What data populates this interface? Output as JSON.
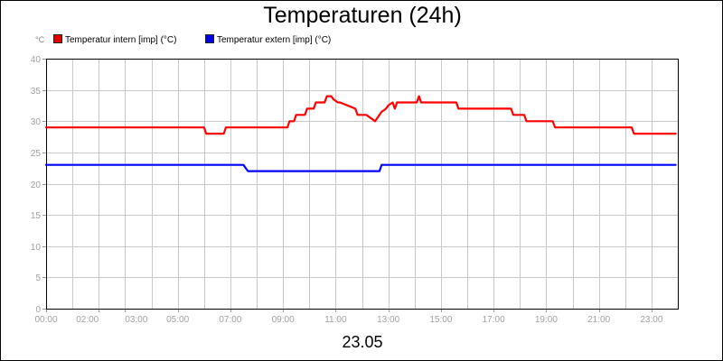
{
  "chart_data": {
    "type": "line",
    "title": "Temperaturen (24h)",
    "unit": "°C",
    "date_label": "23.05",
    "ylim": [
      0,
      40
    ],
    "y_ticks": [
      0,
      5,
      10,
      15,
      20,
      25,
      30,
      35,
      40
    ],
    "xlim": [
      "00:00",
      "24:00"
    ],
    "x_tick_labels": [
      {
        "t": "00:00",
        "h": 0
      },
      {
        "t": "02:00",
        "h": 2
      },
      {
        "t": "03:00",
        "h": 3
      },
      {
        "t": "05:00",
        "h": 5
      },
      {
        "t": "07:00",
        "h": 7
      },
      {
        "t": "09:00",
        "h": 9
      },
      {
        "t": "11:00",
        "h": 11
      },
      {
        "t": "13:00",
        "h": 13
      },
      {
        "t": "15:00",
        "h": 15
      },
      {
        "t": "17:00",
        "h": 17
      },
      {
        "t": "19:00",
        "h": 19
      },
      {
        "t": "21:00",
        "h": 21
      },
      {
        "t": "23:00",
        "h": 23
      }
    ],
    "grid": true,
    "legend_position": "top-left",
    "series": [
      {
        "name": "Temperatur intern [imp] (°C)",
        "color": "#ff0000",
        "x": [
          "00:00",
          "06:00",
          "06:05",
          "06:45",
          "06:50",
          "09:10",
          "09:15",
          "09:25",
          "09:30",
          "09:50",
          "09:55",
          "10:10",
          "10:15",
          "10:35",
          "10:40",
          "10:50",
          "10:55",
          "11:05",
          "11:10",
          "11:45",
          "11:50",
          "12:10",
          "12:20",
          "12:30",
          "12:35",
          "12:40",
          "12:45",
          "12:55",
          "13:00",
          "13:10",
          "13:15",
          "13:20",
          "13:25",
          "14:05",
          "14:10",
          "14:15",
          "14:20",
          "15:35",
          "15:40",
          "17:40",
          "17:45",
          "18:10",
          "18:15",
          "19:15",
          "19:20",
          "22:15",
          "22:20",
          "23:55"
        ],
        "y": [
          29,
          29,
          28,
          28,
          29,
          29,
          30,
          30,
          31,
          31,
          32,
          32,
          33,
          33,
          34,
          34,
          33.5,
          33,
          33,
          32,
          31,
          31,
          30.5,
          30,
          30.5,
          31,
          31.5,
          32,
          32.5,
          33,
          32,
          33,
          33,
          33,
          34,
          33,
          33,
          33,
          32,
          32,
          31,
          31,
          30,
          30,
          29,
          29,
          28,
          28
        ]
      },
      {
        "name": "Temperatur extern [imp] (°C)",
        "color": "#0000ff",
        "x": [
          "00:00",
          "07:30",
          "07:40",
          "12:40",
          "12:45",
          "23:55"
        ],
        "y": [
          23,
          23,
          22,
          22,
          23,
          23
        ]
      }
    ]
  }
}
